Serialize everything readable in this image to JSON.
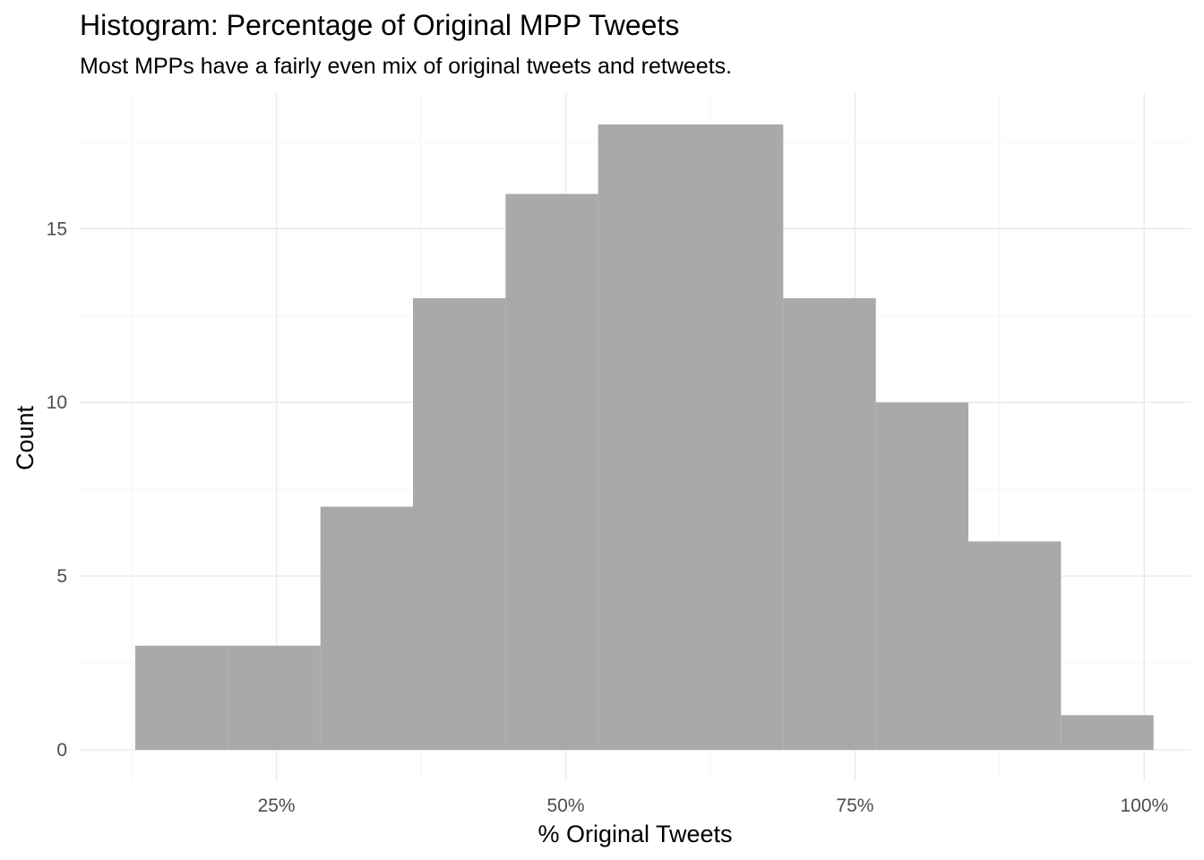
{
  "chart_data": {
    "type": "bar",
    "title": "Histogram: Percentage of Original MPP Tweets",
    "subtitle": "Most MPPs have a fairly even mix of original tweets and retweets.",
    "xlabel": "% Original Tweets",
    "ylabel": "Count",
    "bins": [
      {
        "x0": 0.128,
        "x1": 0.208,
        "count": 3
      },
      {
        "x0": 0.208,
        "x1": 0.288,
        "count": 3
      },
      {
        "x0": 0.288,
        "x1": 0.368,
        "count": 7
      },
      {
        "x0": 0.368,
        "x1": 0.448,
        "count": 13
      },
      {
        "x0": 0.448,
        "x1": 0.528,
        "count": 16
      },
      {
        "x0": 0.528,
        "x1": 0.608,
        "count": 18
      },
      {
        "x0": 0.608,
        "x1": 0.688,
        "count": 18
      },
      {
        "x0": 0.688,
        "x1": 0.768,
        "count": 13
      },
      {
        "x0": 0.768,
        "x1": 0.848,
        "count": 10
      },
      {
        "x0": 0.848,
        "x1": 0.928,
        "count": 6
      },
      {
        "x0": 0.928,
        "x1": 1.008,
        "count": 1
      }
    ],
    "xlim": [
      0.08,
      1.04
    ],
    "ylim": [
      -0.9,
      18.9
    ],
    "x_major_ticks": [
      0.25,
      0.5,
      0.75,
      1.0
    ],
    "x_tick_labels": [
      "25%",
      "50%",
      "75%",
      "100%"
    ],
    "x_minor_ticks": [
      0.125,
      0.375,
      0.625,
      0.875
    ],
    "y_major_ticks": [
      0,
      5,
      10,
      15
    ],
    "y_tick_labels": [
      "0",
      "5",
      "10",
      "15"
    ],
    "y_minor_ticks": [
      2.5,
      7.5,
      12.5,
      17.5
    ],
    "grid": true,
    "legend": "none",
    "colors": {
      "bar": "#A9A9A9",
      "grid_major": "#EBEBEB",
      "grid_minor": "#F5F5F5",
      "tick_label": "#4D4D4D",
      "text": "#000000"
    }
  }
}
